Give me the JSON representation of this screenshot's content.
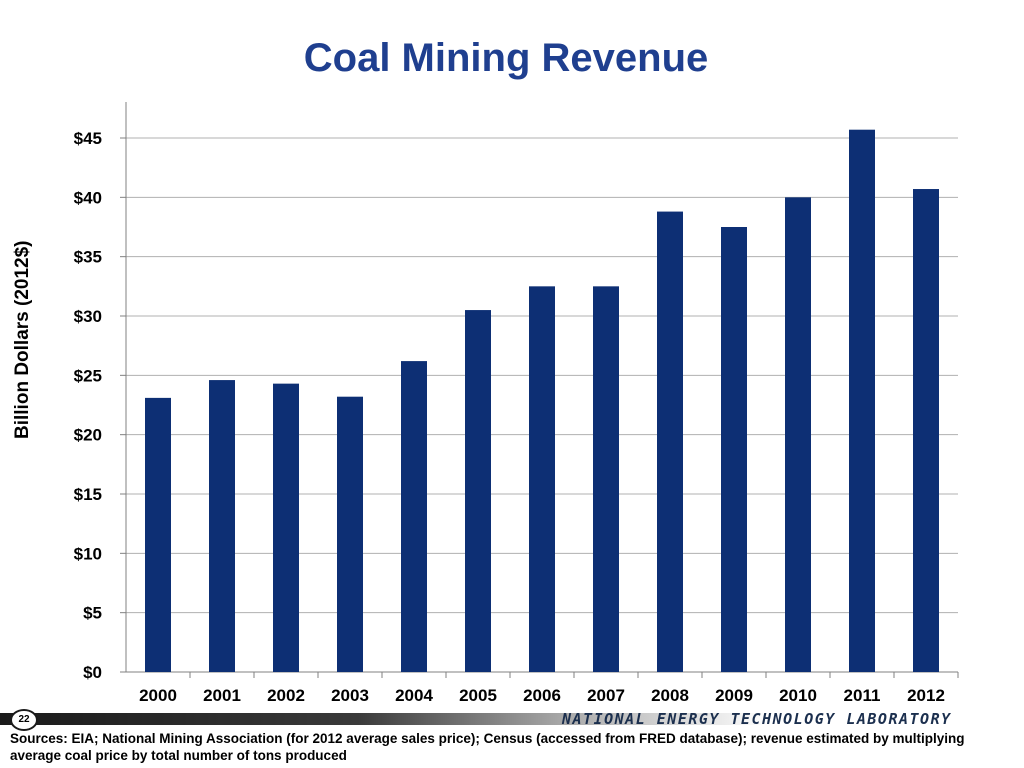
{
  "slide": {
    "title": "Coal Mining Revenue",
    "page_number": "22",
    "org_name": "NATIONAL ENERGY TECHNOLOGY LABORATORY",
    "sources": "Sources: EIA; National Mining Association (for 2012 average sales price); Census (accessed from FRED database); revenue estimated by multiplying average coal price by total number of tons produced"
  },
  "colors": {
    "title": "#1f3f8f",
    "bar": "#0d2f74",
    "gridline": "#b0b0b0",
    "footer_dark": "#2b2b2b"
  },
  "chart_data": {
    "type": "bar",
    "title": "",
    "xlabel": "",
    "ylabel": "Billion  Dollars  (2012$)",
    "categories": [
      "2000",
      "2001",
      "2002",
      "2003",
      "2004",
      "2005",
      "2006",
      "2007",
      "2008",
      "2009",
      "2010",
      "2011",
      "2012"
    ],
    "values": [
      23.1,
      24.6,
      24.3,
      23.2,
      26.2,
      30.5,
      32.5,
      32.5,
      38.8,
      37.5,
      40.0,
      45.7,
      40.7
    ],
    "ylim": [
      0,
      48
    ],
    "yticks": [
      0,
      5,
      10,
      15,
      20,
      25,
      30,
      35,
      40,
      45
    ],
    "ytick_labels": [
      "$0",
      "$5",
      "$10",
      "$15",
      "$20",
      "$25",
      "$30",
      "$35",
      "$40",
      "$45"
    ],
    "grid": true,
    "legend": "none"
  }
}
